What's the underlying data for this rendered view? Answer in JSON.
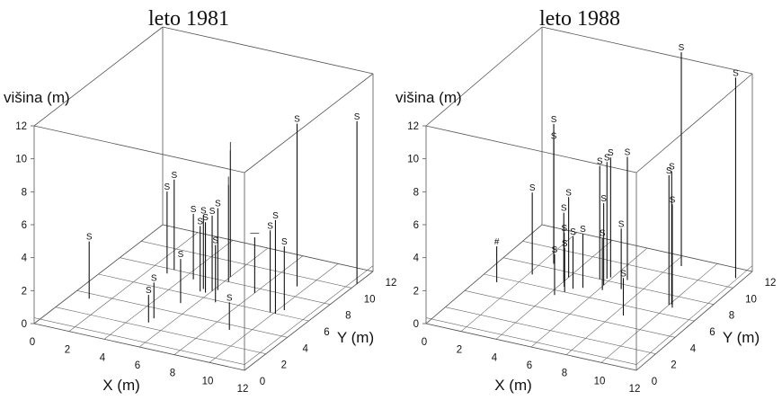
{
  "chart_data": [
    {
      "type": "scatter",
      "title": "leto 1981",
      "xlabel": "X (m)",
      "ylabel": "Y (m)",
      "zlabel": "višina  (m)",
      "xlim": [
        0,
        12
      ],
      "ylim": [
        0,
        12
      ],
      "zlim": [
        0,
        12
      ],
      "xticks": [
        "0",
        "2",
        "4",
        "6",
        "8",
        "10",
        "12"
      ],
      "yticks": [
        "0",
        "2",
        "4",
        "6",
        "8",
        "10",
        "12"
      ],
      "zticks": [
        "0",
        "2",
        "4",
        "6",
        "8",
        "10",
        "12"
      ],
      "marker": "S",
      "points": [
        {
          "x": 1.0,
          "y": 3.5,
          "z": 3.8,
          "label": "S"
        },
        {
          "x": 3.0,
          "y": 7.5,
          "z": 5.3,
          "label": "S"
        },
        {
          "x": 3.1,
          "y": 8.0,
          "z": 5.8,
          "label": "S"
        },
        {
          "x": 4.5,
          "y": 7.5,
          "z": 4.3,
          "label": "S"
        },
        {
          "x": 5.0,
          "y": 2.5,
          "z": 2.0,
          "label": "S"
        },
        {
          "x": 5.0,
          "y": 3.0,
          "z": 2.5,
          "label": "S"
        },
        {
          "x": 5.3,
          "y": 5.0,
          "z": 3.0,
          "label": "S"
        },
        {
          "x": 5.5,
          "y": 6.5,
          "z": 4.3,
          "label": "S"
        },
        {
          "x": 5.5,
          "y": 6.8,
          "z": 4.8,
          "label": "S"
        },
        {
          "x": 5.8,
          "y": 6.5,
          "z": 4.6,
          "label": "S"
        },
        {
          "x": 6.0,
          "y": 6.8,
          "z": 4.9,
          "label": "S"
        },
        {
          "x": 6.2,
          "y": 7.0,
          "z": 5.3,
          "label": "S"
        },
        {
          "x": 6.8,
          "y": 5.8,
          "z": 3.8,
          "label": "S"
        },
        {
          "x": 9.0,
          "y": 3.5,
          "z": 2.0,
          "label": "S"
        },
        {
          "x": 9.5,
          "y": 9.0,
          "z": 10.2,
          "label": "S"
        },
        {
          "x": 9.8,
          "y": 6.0,
          "z": 5.3,
          "label": "S"
        },
        {
          "x": 10.1,
          "y": 6.0,
          "z": 6.0,
          "label": "S"
        },
        {
          "x": 10.3,
          "y": 6.5,
          "z": 4.2,
          "label": "S"
        },
        {
          "x": 12.0,
          "y": 10.5,
          "z": 10.2,
          "label": "S"
        },
        {
          "x": 6.0,
          "y": 8.5,
          "z": 8.0,
          "label": "|"
        },
        {
          "x": 6.2,
          "y": 8.0,
          "z": 6.2,
          "label": "|"
        },
        {
          "x": 8.0,
          "y": 7.5,
          "z": 3.7,
          "label": "—"
        }
      ]
    },
    {
      "type": "scatter",
      "title": "leto 1988",
      "xlabel": "X (m)",
      "ylabel": "Y (m)",
      "zlabel": "višina  (m)",
      "xlim": [
        0,
        12
      ],
      "ylim": [
        0,
        12
      ],
      "zlim": [
        0,
        12
      ],
      "xticks": [
        "0",
        "2",
        "4",
        "6",
        "8",
        "10",
        "12"
      ],
      "yticks": [
        "0",
        "2",
        "4",
        "6",
        "8",
        "10",
        "12"
      ],
      "zticks": [
        "0",
        "2",
        "4",
        "6",
        "8",
        "10",
        "12"
      ],
      "marker": "S",
      "points": [
        {
          "x": 1.0,
          "y": 5.5,
          "z": 2.5,
          "label": "#"
        },
        {
          "x": 2.2,
          "y": 7.0,
          "z": 5.3,
          "label": "S"
        },
        {
          "x": 2.6,
          "y": 8.5,
          "z": 7.8,
          "label": "S"
        },
        {
          "x": 2.6,
          "y": 8.5,
          "z": 8.8,
          "label": "S"
        },
        {
          "x": 4.0,
          "y": 7.5,
          "z": 5.2,
          "label": "S"
        },
        {
          "x": 4.0,
          "y": 7.0,
          "z": 4.5,
          "label": "S"
        },
        {
          "x": 4.3,
          "y": 6.5,
          "z": 3.6,
          "label": "S"
        },
        {
          "x": 4.3,
          "y": 5.5,
          "z": 2.8,
          "label": "S"
        },
        {
          "x": 4.6,
          "y": 6.0,
          "z": 3.0,
          "label": "S"
        },
        {
          "x": 4.8,
          "y": 6.5,
          "z": 3.5,
          "label": "S"
        },
        {
          "x": 5.2,
          "y": 6.8,
          "z": 3.6,
          "label": "S"
        },
        {
          "x": 5.5,
          "y": 8.0,
          "z": 7.2,
          "label": "S"
        },
        {
          "x": 5.8,
          "y": 8.2,
          "z": 7.4,
          "label": "S"
        },
        {
          "x": 5.9,
          "y": 8.4,
          "z": 7.6,
          "label": "S"
        },
        {
          "x": 6.0,
          "y": 7.5,
          "z": 5.3,
          "label": "S"
        },
        {
          "x": 6.2,
          "y": 7.0,
          "z": 3.5,
          "label": "S"
        },
        {
          "x": 6.8,
          "y": 8.5,
          "z": 7.8,
          "label": "S"
        },
        {
          "x": 7.0,
          "y": 7.5,
          "z": 4.0,
          "label": "S"
        },
        {
          "x": 8.5,
          "y": 5.0,
          "z": 2.6,
          "label": "S"
        },
        {
          "x": 10.0,
          "y": 7.0,
          "z": 8.2,
          "label": "S"
        },
        {
          "x": 10.1,
          "y": 7.1,
          "z": 8.4,
          "label": "S"
        },
        {
          "x": 10.3,
          "y": 6.8,
          "z": 6.6,
          "label": "S"
        },
        {
          "x": 8.5,
          "y": 11.0,
          "z": 13.3,
          "label": "S"
        },
        {
          "x": 11.6,
          "y": 11.0,
          "z": 12.5,
          "label": "S"
        }
      ]
    }
  ]
}
